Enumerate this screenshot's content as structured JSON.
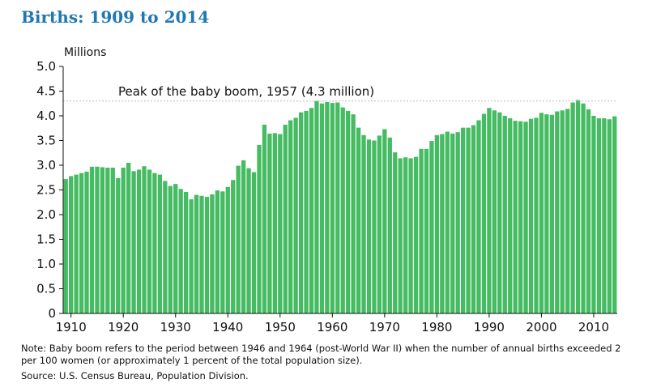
{
  "title": "Births: 1909 to 2014",
  "note": "Note: Baby boom refers to the period between 1946 and 1964 (post-World War II) when the number of annual births exceeded 2 per 100 women (or approximately 1 percent of the total population size).",
  "source": "Source: U.S. Census Bureau, Population Division.",
  "colors": {
    "bar": "#45bb62",
    "title": "#1f77b4",
    "refline": "#bbbbbb"
  },
  "chart_data": {
    "type": "bar",
    "title": "Births: 1909 to 2014",
    "ylabel": "Millions",
    "xlabel": "",
    "ylim": [
      0,
      5.0
    ],
    "yticks": [
      "0",
      "0.5",
      "1.0",
      "1.5",
      "2.0",
      "2.5",
      "3.0",
      "3.5",
      "4.0",
      "4.5",
      "5.0"
    ],
    "xticks": [
      "1910",
      "1920",
      "1930",
      "1940",
      "1950",
      "1960",
      "1970",
      "1980",
      "1990",
      "2000",
      "2010"
    ],
    "grid": false,
    "reference_line": {
      "y": 4.3,
      "style": "dashed"
    },
    "annotation": "Peak of the baby boom, 1957 (4.3 million)",
    "x": [
      1909,
      1910,
      1911,
      1912,
      1913,
      1914,
      1915,
      1916,
      1917,
      1918,
      1919,
      1920,
      1921,
      1922,
      1923,
      1924,
      1925,
      1926,
      1927,
      1928,
      1929,
      1930,
      1931,
      1932,
      1933,
      1934,
      1935,
      1936,
      1937,
      1938,
      1939,
      1940,
      1941,
      1942,
      1943,
      1944,
      1945,
      1946,
      1947,
      1948,
      1949,
      1950,
      1951,
      1952,
      1953,
      1954,
      1955,
      1956,
      1957,
      1958,
      1959,
      1960,
      1961,
      1962,
      1963,
      1964,
      1965,
      1966,
      1967,
      1968,
      1969,
      1970,
      1971,
      1972,
      1973,
      1974,
      1975,
      1976,
      1977,
      1978,
      1979,
      1980,
      1981,
      1982,
      1983,
      1984,
      1985,
      1986,
      1987,
      1988,
      1989,
      1990,
      1991,
      1992,
      1993,
      1994,
      1995,
      1996,
      1997,
      1998,
      1999,
      2000,
      2001,
      2002,
      2003,
      2004,
      2005,
      2006,
      2007,
      2008,
      2009,
      2010,
      2011,
      2012,
      2013,
      2014
    ],
    "values": [
      2.72,
      2.78,
      2.81,
      2.84,
      2.87,
      2.97,
      2.97,
      2.96,
      2.95,
      2.95,
      2.74,
      2.95,
      3.05,
      2.88,
      2.91,
      2.98,
      2.91,
      2.84,
      2.81,
      2.68,
      2.58,
      2.62,
      2.52,
      2.46,
      2.31,
      2.4,
      2.38,
      2.36,
      2.41,
      2.49,
      2.47,
      2.56,
      2.7,
      2.99,
      3.1,
      2.94,
      2.86,
      3.41,
      3.82,
      3.64,
      3.65,
      3.63,
      3.82,
      3.91,
      3.96,
      4.07,
      4.1,
      4.16,
      4.3,
      4.25,
      4.28,
      4.26,
      4.27,
      4.17,
      4.1,
      4.03,
      3.76,
      3.61,
      3.52,
      3.5,
      3.6,
      3.73,
      3.56,
      3.26,
      3.14,
      3.16,
      3.14,
      3.17,
      3.33,
      3.33,
      3.49,
      3.61,
      3.63,
      3.68,
      3.64,
      3.67,
      3.76,
      3.76,
      3.81,
      3.91,
      4.04,
      4.16,
      4.11,
      4.07,
      4.0,
      3.95,
      3.9,
      3.89,
      3.88,
      3.94,
      3.96,
      4.06,
      4.03,
      4.02,
      4.09,
      4.11,
      4.14,
      4.27,
      4.32,
      4.25,
      4.13,
      4.0,
      3.95,
      3.95,
      3.93,
      3.99
    ]
  }
}
